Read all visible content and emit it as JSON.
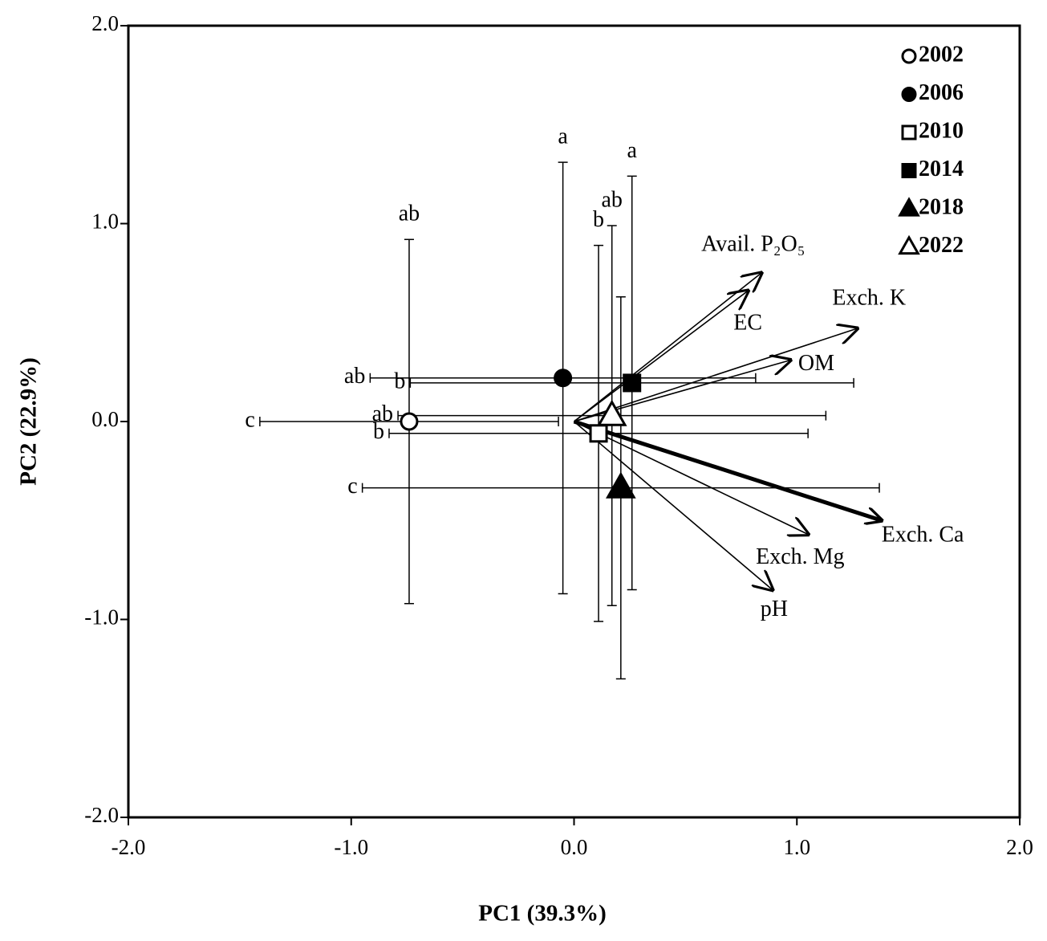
{
  "chart_data": {
    "type": "scatter",
    "xlabel": "PC1 (39.3%)",
    "ylabel": "PC2 (22.9%)",
    "xlim": [
      -2,
      2
    ],
    "ylim": [
      -2,
      2
    ],
    "xticks": [
      {
        "value": -2,
        "label": "-2.0"
      },
      {
        "value": -1,
        "label": "-1.0"
      },
      {
        "value": 0,
        "label": "0.0"
      },
      {
        "value": 1,
        "label": "1.0"
      },
      {
        "value": 2,
        "label": "2.0"
      }
    ],
    "yticks": [
      {
        "value": -2,
        "label": "-2.0"
      },
      {
        "value": -1,
        "label": "-1.0"
      },
      {
        "value": 0,
        "label": "0.0"
      },
      {
        "value": 1,
        "label": "1.0"
      },
      {
        "value": 2,
        "label": "2.0"
      }
    ],
    "legend": "upper right",
    "series": [
      {
        "name": "2002",
        "marker": "circle-open",
        "x": [
          -0.74
        ],
        "y": [
          0.0
        ],
        "xerr": [
          0.67
        ],
        "yerr": [
          0.92
        ],
        "x_letter": "c",
        "y_letter": "ab"
      },
      {
        "name": "2006",
        "marker": "circle-filled",
        "x": [
          -0.05
        ],
        "y": [
          0.22
        ],
        "xerr": [
          0.865
        ],
        "yerr": [
          1.09
        ],
        "x_letter": "ab",
        "y_letter": "a"
      },
      {
        "name": "2010",
        "marker": "square-open",
        "x": [
          0.11
        ],
        "y": [
          -0.06
        ],
        "xerr": [
          0.94
        ],
        "yerr": [
          0.95
        ],
        "x_letter": "b",
        "y_letter": "b"
      },
      {
        "name": "2014",
        "marker": "square-filled",
        "x": [
          0.26
        ],
        "y": [
          0.195
        ],
        "xerr": [
          0.995
        ],
        "yerr": [
          1.045
        ],
        "x_letter": "b",
        "y_letter": "a"
      },
      {
        "name": "2018",
        "marker": "triangle-filled",
        "x": [
          0.21
        ],
        "y": [
          -0.335
        ],
        "xerr": [
          1.16
        ],
        "yerr": [
          0.965
        ],
        "x_letter": "c"
      },
      {
        "name": "2022",
        "marker": "triangle-open",
        "x": [
          0.17
        ],
        "y": [
          0.03
        ],
        "xerr": [
          0.96
        ],
        "yerr": [
          0.96
        ],
        "x_letter": "ab",
        "y_letter": "ab"
      }
    ],
    "vectors": [
      {
        "name": "Avail. P₂O₅",
        "x": 0.84,
        "y": 0.75
      },
      {
        "name": "EC",
        "x": 0.78,
        "y": 0.66
      },
      {
        "name": "Exch. K",
        "x": 1.27,
        "y": 0.47
      },
      {
        "name": "OM",
        "x": 0.97,
        "y": 0.31
      },
      {
        "name": "Exch. Ca",
        "x": 1.38,
        "y": -0.5,
        "bold": true
      },
      {
        "name": "Exch. Mg",
        "x": 1.05,
        "y": -0.57
      },
      {
        "name": "pH",
        "x": 0.89,
        "y": -0.85
      }
    ]
  }
}
